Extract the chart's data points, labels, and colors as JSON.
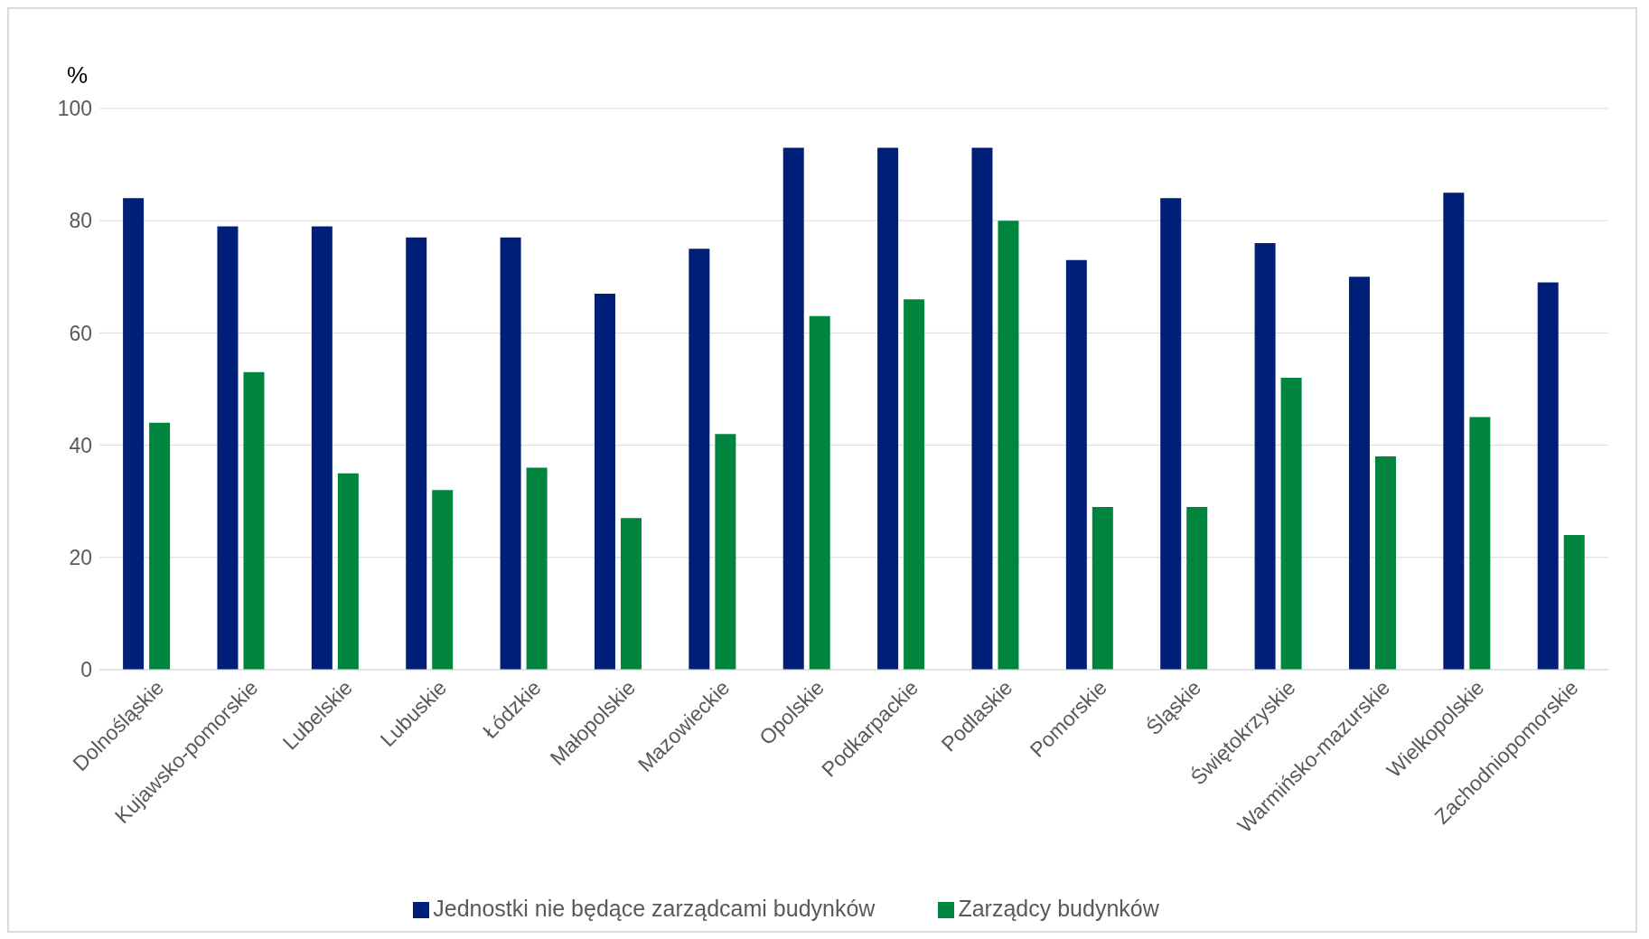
{
  "chart_data": {
    "type": "bar",
    "ylabel": "%",
    "categories": [
      "Dolnośląskie",
      "Kujawsko-pomorskie",
      "Lubelskie",
      "Lubuskie",
      "Łódzkie",
      "Małopolskie",
      "Mazowieckie",
      "Opolskie",
      "Podkarpackie",
      "Podlaskie",
      "Pomorskie",
      "Śląskie",
      "Świętokrzyskie",
      "Warmińsko-mazurskie",
      "Wielkopolskie",
      "Zachodniopomorskie"
    ],
    "series": [
      {
        "name": "Jednostki nie będące zarządcami budynków",
        "color": "#001f78",
        "values": [
          84,
          79,
          79,
          77,
          77,
          67,
          75,
          93,
          93,
          93,
          73,
          84,
          76,
          70,
          85,
          69
        ]
      },
      {
        "name": "Zarządcy budynków",
        "color": "#00853f",
        "values": [
          44,
          53,
          35,
          32,
          36,
          27,
          42,
          63,
          66,
          80,
          29,
          29,
          52,
          38,
          45,
          24
        ]
      }
    ],
    "ylim": [
      0,
      100
    ],
    "yticks": [
      0,
      20,
      40,
      60,
      80,
      100
    ],
    "grid": "y",
    "legend": "bottom"
  }
}
